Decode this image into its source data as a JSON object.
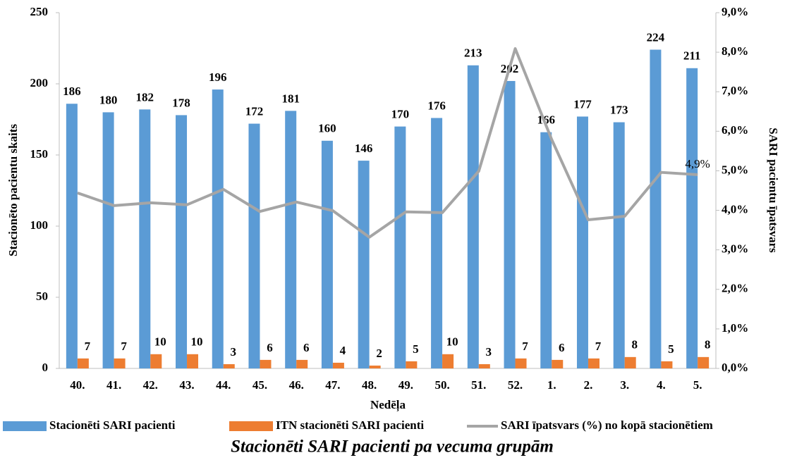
{
  "chart_data": {
    "type": "bar-line",
    "title": "Stacionēti SARI pacienti pa vecuma grupām",
    "x_label": "Nedēļa",
    "y_label": "Stacionēto pacientu skaits",
    "y2_label": "SARI pacientu īpatsvars",
    "categories": [
      "40.",
      "41.",
      "42.",
      "43.",
      "44.",
      "45.",
      "46.",
      "47.",
      "48.",
      "49.",
      "50.",
      "51.",
      "52.",
      "1.",
      "2.",
      "3.",
      "4.",
      "5."
    ],
    "series": [
      {
        "name": "Stacionēti SARI pacienti",
        "kind": "bar",
        "color": "#5b9bd5",
        "values": [
          186,
          180,
          182,
          178,
          196,
          172,
          181,
          160,
          146,
          170,
          176,
          213,
          202,
          166,
          177,
          173,
          224,
          211
        ]
      },
      {
        "name": "ITN stacionēti SARI pacienti",
        "kind": "bar",
        "color": "#ed7d31",
        "values": [
          7,
          7,
          10,
          10,
          3,
          6,
          6,
          4,
          2,
          5,
          10,
          3,
          7,
          6,
          7,
          8,
          5,
          8
        ]
      },
      {
        "name": "SARI īpatsvars (%) no kopā stacionētiem",
        "kind": "line",
        "color": "#a5a5a5",
        "axis": "y2",
        "values": [
          4.44,
          4.12,
          4.19,
          4.14,
          4.53,
          3.97,
          4.21,
          3.99,
          3.32,
          3.96,
          3.94,
          4.99,
          8.09,
          5.79,
          3.76,
          3.85,
          4.96,
          4.9
        ],
        "value_labels": [
          null,
          null,
          null,
          null,
          null,
          null,
          null,
          null,
          null,
          null,
          null,
          null,
          null,
          null,
          null,
          null,
          null,
          "4,9%"
        ]
      }
    ],
    "ylim": [
      0,
      250
    ],
    "yticks": [
      0,
      50,
      100,
      150,
      200,
      250
    ],
    "y2lim": [
      0,
      9
    ],
    "y2ticks": [
      {
        "value": 0,
        "label": "0,0%"
      },
      {
        "value": 1,
        "label": "1,0%"
      },
      {
        "value": 2,
        "label": "2,0%"
      },
      {
        "value": 3,
        "label": "3,0%"
      },
      {
        "value": 4,
        "label": "4,0%"
      },
      {
        "value": 5,
        "label": "5,0%"
      },
      {
        "value": 6,
        "label": "6,0%"
      },
      {
        "value": 7,
        "label": "7,0%"
      },
      {
        "value": 8,
        "label": "8,0%"
      },
      {
        "value": 9,
        "label": "9,0%"
      }
    ]
  }
}
